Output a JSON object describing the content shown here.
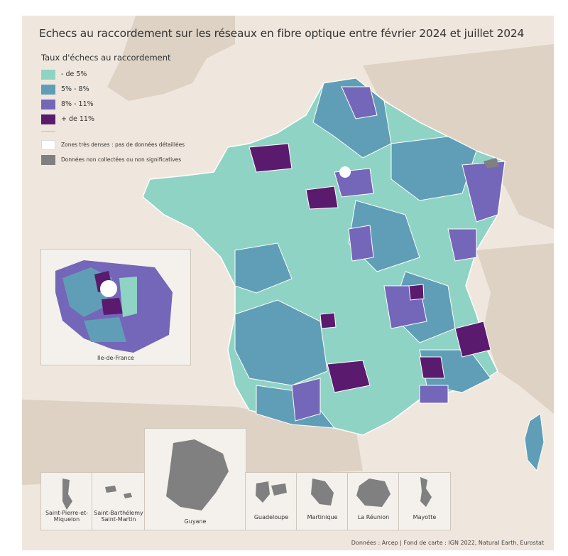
{
  "title": "Echecs au raccordement sur les réseaux en fibre optique entre février 2024 et juillet 2024",
  "legend": {
    "title": "Taux d'échecs au raccordement",
    "classes": [
      {
        "label": "- de 5%",
        "color": "#8fd3c4"
      },
      {
        "label": "5% - 8%",
        "color": "#5f9eb6"
      },
      {
        "label": "8% - 11%",
        "color": "#7466b8"
      },
      {
        "label": "+ de 11%",
        "color": "#5a1a6e"
      }
    ],
    "dense": {
      "label": "Zones très denses : pas de données détaillées",
      "color": "#ffffff"
    },
    "nodata": {
      "label": "Données non collectées ou non significatives",
      "color": "#808080"
    }
  },
  "insets": {
    "idf": "Ile-de-France",
    "spm": "Saint-Pierre-et-Miquelon",
    "sbsm": "Saint-Barthélemy Saint-Martin",
    "guyane": "Guyane",
    "guadeloupe": "Guadeloupe",
    "martinique": "Martinique",
    "reunion": "La Réunion",
    "mayotte": "Mayotte"
  },
  "source": "Données : Arcep | Fond de carte : IGN 2022, Natural Earth, Eurostat",
  "colors": {
    "background": "#efe7dd",
    "neighbor_land": "#ddd2c4",
    "sea": "#efe7dd",
    "dom_gray": "#808080"
  }
}
